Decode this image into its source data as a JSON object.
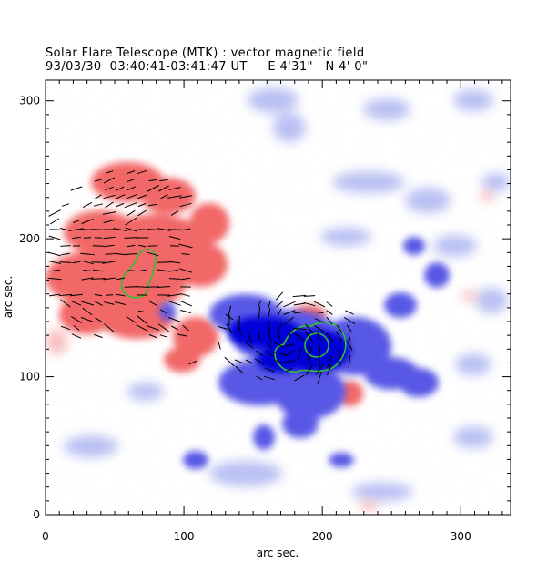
{
  "figure": {
    "title": "Solar Flare Telescope (MTK) : vector magnetic field",
    "subtitle": "93/03/30  03:40:41-03:41:47 UT     E 4'31\"   N 4' 0\"",
    "xlabel": "arc sec.",
    "ylabel": "arc sec."
  },
  "axes": {
    "xlim": [
      0,
      336
    ],
    "ylim": [
      0,
      315
    ],
    "x_ticks": [
      0,
      100,
      200,
      300
    ],
    "y_ticks": [
      0,
      100,
      200,
      300
    ],
    "x_minor_step": 10,
    "y_minor_step": 10
  },
  "colors": {
    "positive_polarity": "#f06060",
    "negative_polarity": "#4848e0",
    "strong_negative": "#0000d8",
    "contour": "#30c030",
    "vectors": "#000000",
    "frame": "#000000"
  }
}
